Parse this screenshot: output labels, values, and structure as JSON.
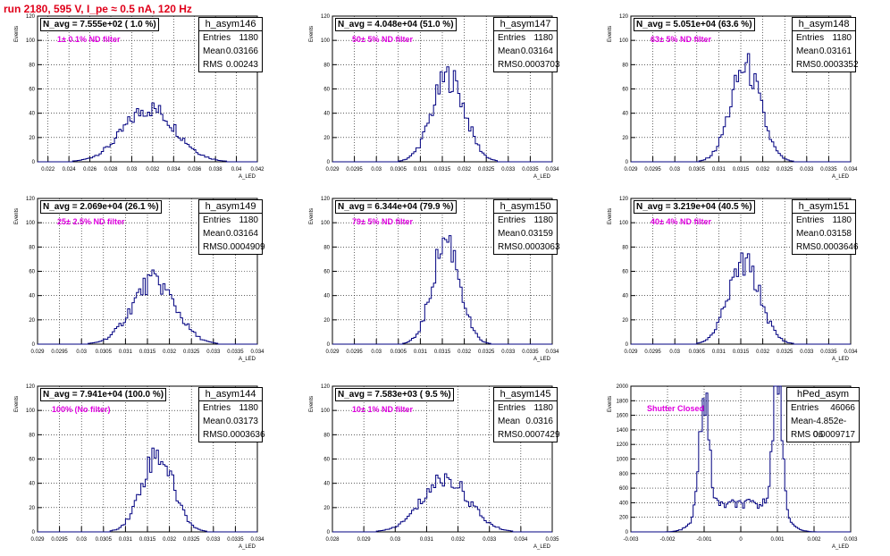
{
  "title": "run 2180,   595 V, I_pe ≈ 0.5 nA, 120 Hz",
  "y_axis_label": "Events",
  "x_axis_label": "A_LED",
  "colors": {
    "title": "#e0001a",
    "annotation": "#e000e0",
    "histogram": "#000080"
  },
  "chart_data": [
    {
      "type": "bar",
      "name": "h_asym146",
      "entries": "1180",
      "mean": "0.03166",
      "rms": "0.00243",
      "navg": "N_avg = 7.555e+02 ( 1.0 %)",
      "filter": "1± 0.1% ND filter",
      "x_range": [
        0.021,
        0.042
      ],
      "xticks": [
        "0.022",
        "0.024",
        "0.026",
        "0.028",
        "0.03",
        "0.032",
        "0.034",
        "0.036",
        "0.038",
        "0.04",
        "0.042"
      ],
      "xtick_vals": [
        0.022,
        0.024,
        0.026,
        0.028,
        0.03,
        0.032,
        0.034,
        0.036,
        0.038,
        0.04,
        0.042
      ],
      "ylim": [
        0,
        120
      ],
      "yticks": [
        "0",
        "20",
        "40",
        "60",
        "80",
        "100",
        "120"
      ],
      "peak": {
        "mu": 0.0317,
        "sigma": 0.0025,
        "height": 44
      }
    },
    {
      "type": "bar",
      "name": "h_asym147",
      "entries": "1180",
      "mean": "0.03164",
      "rms": "0.0003703",
      "navg": "N_avg = 4.048e+04 (51.0 %)",
      "filter": "50± 5% ND filter",
      "x_range": [
        0.029,
        0.034
      ],
      "xticks": [
        "0.029",
        "0.0295",
        "0.03",
        "0.0305",
        "0.031",
        "0.0315",
        "0.032",
        "0.0325",
        "0.033",
        "0.0335",
        "0.034"
      ],
      "xtick_vals": [
        0.029,
        0.0295,
        0.03,
        0.0305,
        0.031,
        0.0315,
        0.032,
        0.0325,
        0.033,
        0.0335,
        0.034
      ],
      "ylim": [
        0,
        120
      ],
      "yticks": [
        "0",
        "20",
        "40",
        "60",
        "80",
        "100",
        "120"
      ],
      "peak": {
        "mu": 0.03164,
        "sigma": 0.00037,
        "height": 70
      }
    },
    {
      "type": "bar",
      "name": "h_asym148",
      "entries": "1180",
      "mean": "0.03161",
      "rms": "0.0003352",
      "navg": "N_avg = 5.051e+04 (63.6 %)",
      "filter": "63± 5% ND filter",
      "x_range": [
        0.029,
        0.034
      ],
      "xticks": [
        "0.029",
        "0.0295",
        "0.03",
        "0.0305",
        "0.031",
        "0.0315",
        "0.032",
        "0.0325",
        "0.033",
        "0.0335",
        "0.034"
      ],
      "xtick_vals": [
        0.029,
        0.0295,
        0.03,
        0.0305,
        0.031,
        0.0315,
        0.032,
        0.0325,
        0.033,
        0.0335,
        0.034
      ],
      "ylim": [
        0,
        120
      ],
      "yticks": [
        "0",
        "20",
        "40",
        "60",
        "80",
        "100",
        "120"
      ],
      "peak": {
        "mu": 0.03161,
        "sigma": 0.00034,
        "height": 78
      }
    },
    {
      "type": "bar",
      "name": "h_asym149",
      "entries": "1180",
      "mean": "0.03164",
      "rms": "0.0004909",
      "navg": "N_avg = 2.069e+04 (26.1 %)",
      "filter": "25± 2.5% ND filter",
      "x_range": [
        0.029,
        0.034
      ],
      "xticks": [
        "0.029",
        "0.0295",
        "0.03",
        "0.0305",
        "0.031",
        "0.0315",
        "0.032",
        "0.0325",
        "0.033",
        "0.0335",
        "0.034"
      ],
      "xtick_vals": [
        0.029,
        0.0295,
        0.03,
        0.0305,
        0.031,
        0.0315,
        0.032,
        0.0325,
        0.033,
        0.0335,
        0.034
      ],
      "ylim": [
        0,
        120
      ],
      "yticks": [
        "0",
        "20",
        "40",
        "60",
        "80",
        "100",
        "120"
      ],
      "peak": {
        "mu": 0.03164,
        "sigma": 0.00049,
        "height": 52
      }
    },
    {
      "type": "bar",
      "name": "h_asym150",
      "entries": "1180",
      "mean": "0.03159",
      "rms": "0.0003063",
      "navg": "N_avg = 6.344e+04 (79.9 %)",
      "filter": "79± 5% ND filter",
      "x_range": [
        0.029,
        0.034
      ],
      "xticks": [
        "0.029",
        "0.0295",
        "0.03",
        "0.0305",
        "0.031",
        "0.0315",
        "0.032",
        "0.0325",
        "0.033",
        "0.0335",
        "0.034"
      ],
      "xtick_vals": [
        0.029,
        0.0295,
        0.03,
        0.0305,
        0.031,
        0.0315,
        0.032,
        0.0325,
        0.033,
        0.0335,
        0.034
      ],
      "ylim": [
        0,
        120
      ],
      "yticks": [
        "0",
        "20",
        "40",
        "60",
        "80",
        "100",
        "120"
      ],
      "peak": {
        "mu": 0.03159,
        "sigma": 0.00031,
        "height": 86
      }
    },
    {
      "type": "bar",
      "name": "h_asym151",
      "entries": "1180",
      "mean": "0.03158",
      "rms": "0.0003646",
      "navg": "N_avg = 3.219e+04 (40.5 %)",
      "filter": "40± 4% ND filter",
      "x_range": [
        0.029,
        0.034
      ],
      "xticks": [
        "0.029",
        "0.0295",
        "0.03",
        "0.0305",
        "0.031",
        "0.0315",
        "0.032",
        "0.0325",
        "0.033",
        "0.0335",
        "0.034"
      ],
      "xtick_vals": [
        0.029,
        0.0295,
        0.03,
        0.0305,
        0.031,
        0.0315,
        0.032,
        0.0325,
        0.033,
        0.0335,
        0.034
      ],
      "ylim": [
        0,
        120
      ],
      "yticks": [
        "0",
        "20",
        "40",
        "60",
        "80",
        "100",
        "120"
      ],
      "peak": {
        "mu": 0.03158,
        "sigma": 0.00036,
        "height": 66
      }
    },
    {
      "type": "bar",
      "name": "h_asym144",
      "entries": "1180",
      "mean": "0.03173",
      "rms": "0.0003636",
      "navg": "N_avg = 7.941e+04 (100.0 %)",
      "filter": "100% (No filter)",
      "x_range": [
        0.029,
        0.034
      ],
      "xticks": [
        "0.029",
        "0.0295",
        "0.03",
        "0.0305",
        "0.031",
        "0.0315",
        "0.032",
        "0.0325",
        "0.033",
        "0.0335",
        "0.034"
      ],
      "xtick_vals": [
        0.029,
        0.0295,
        0.03,
        0.0305,
        0.031,
        0.0315,
        0.032,
        0.0325,
        0.033,
        0.0335,
        0.034
      ],
      "ylim": [
        0,
        120
      ],
      "yticks": [
        "0",
        "20",
        "40",
        "60",
        "80",
        "100",
        "120"
      ],
      "peak": {
        "mu": 0.03173,
        "sigma": 0.00036,
        "height": 64
      }
    },
    {
      "type": "bar",
      "name": "h_asym145",
      "entries": "1180",
      "mean": "0.0316",
      "rms": "0.0007429",
      "navg": "N_avg = 7.583e+03 ( 9.5 %)",
      "filter": "10± 1% ND filter",
      "x_range": [
        0.028,
        0.035
      ],
      "xticks": [
        "0.028",
        "0.029",
        "0.03",
        "0.031",
        "0.032",
        "0.033",
        "0.034",
        "0.035"
      ],
      "xtick_vals": [
        0.028,
        0.029,
        0.03,
        0.031,
        0.032,
        0.033,
        0.034,
        0.035
      ],
      "ylim": [
        0,
        120
      ],
      "yticks": [
        "0",
        "20",
        "40",
        "60",
        "80",
        "100",
        "120"
      ],
      "peak": {
        "mu": 0.0316,
        "sigma": 0.00074,
        "height": 44
      }
    },
    {
      "type": "bar",
      "name": "hPed_asym",
      "entries": "46066",
      "mean": "-4.852e-06",
      "rms": "0.0009717",
      "navg": "",
      "filter": "Shutter Closed",
      "x_range": [
        -0.003,
        0.003
      ],
      "xticks": [
        "-0.003",
        "-0.002",
        "-0.001",
        "0",
        "0.001",
        "0.002",
        "0.003"
      ],
      "xtick_vals": [
        -0.003,
        -0.002,
        -0.001,
        0,
        0.001,
        0.002,
        0.003
      ],
      "ylim": [
        0,
        2000
      ],
      "yticks": [
        "0",
        "200",
        "400",
        "600",
        "800",
        "1000",
        "1200",
        "1400",
        "1600",
        "1800",
        "2000"
      ],
      "peaks": [
        {
          "mu": -0.001,
          "sigma": 0.00013,
          "height": 1600
        },
        {
          "mu": 0.001,
          "sigma": 0.00013,
          "height": 1900
        }
      ],
      "baseline": 380
    }
  ]
}
